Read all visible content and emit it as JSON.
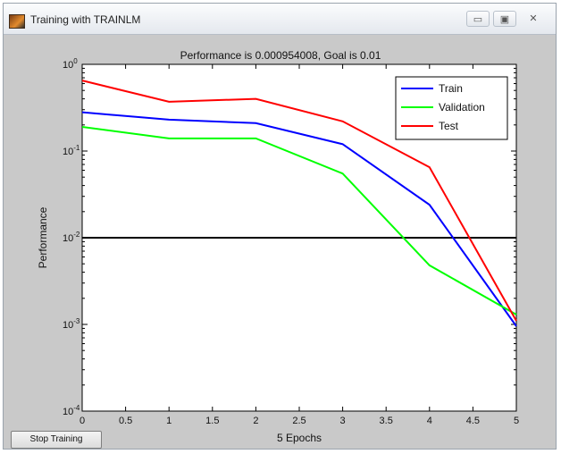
{
  "window": {
    "title": "Training with TRAINLM",
    "minimize_glyph": "▭",
    "maximize_glyph": "▣",
    "close_glyph": "✕"
  },
  "plot": {
    "title": "Performance is 0.000954008, Goal is 0.01",
    "xlabel": "5 Epochs",
    "ylabel": "Performance"
  },
  "buttons": {
    "stop_training": "Stop Training"
  },
  "colors": {
    "train": "#0000ff",
    "validation": "#00ff00",
    "test": "#ff0000",
    "goal": "#000000"
  },
  "chart_data": {
    "type": "line",
    "title": "Performance is 0.000954008, Goal is 0.01",
    "xlabel": "5 Epochs",
    "ylabel": "Performance",
    "xlim": [
      0,
      5
    ],
    "ylim": [
      0.0001,
      1
    ],
    "yscale": "log",
    "x": [
      0,
      1,
      2,
      3,
      4,
      5
    ],
    "xticks": [
      "0",
      "0.5",
      "1",
      "1.5",
      "2",
      "2.5",
      "3",
      "3.5",
      "4",
      "4.5",
      "5"
    ],
    "yticks": [
      {
        "base": "10",
        "exp": "0"
      },
      {
        "base": "10",
        "exp": "-1"
      },
      {
        "base": "10",
        "exp": "-2"
      },
      {
        "base": "10",
        "exp": "-3"
      },
      {
        "base": "10",
        "exp": "-4"
      }
    ],
    "series": [
      {
        "name": "Train",
        "values": [
          0.28,
          0.23,
          0.21,
          0.12,
          0.024,
          0.000954
        ]
      },
      {
        "name": "Validation",
        "values": [
          0.19,
          0.14,
          0.14,
          0.055,
          0.0048,
          0.0013
        ]
      },
      {
        "name": "Test",
        "values": [
          0.65,
          0.37,
          0.4,
          0.22,
          0.065,
          0.0011
        ]
      }
    ],
    "goal": 0.01,
    "legend": "top-right",
    "grid": false
  }
}
